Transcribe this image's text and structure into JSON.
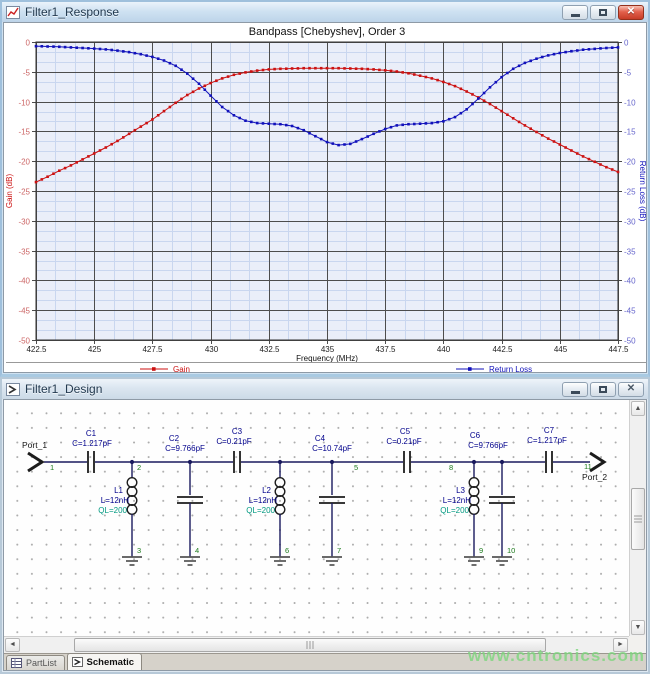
{
  "window_response": {
    "title": "Filter1_Response"
  },
  "window_design": {
    "title": "Filter1_Design",
    "tabs": [
      {
        "label": "PartList",
        "active": false
      },
      {
        "label": "Schematic",
        "active": true
      }
    ],
    "schematic": {
      "ports": [
        {
          "name": "Port_1"
        },
        {
          "name": "Port_2"
        }
      ],
      "parts": [
        {
          "ref": "C1",
          "value": "C=1.217pF"
        },
        {
          "ref": "C2",
          "value": "C=9.766pF"
        },
        {
          "ref": "C3",
          "value": "C=0.21pF"
        },
        {
          "ref": "C4",
          "value": "C=10.74pF"
        },
        {
          "ref": "C5",
          "value": "C=0.21pF"
        },
        {
          "ref": "C6",
          "value": "C=9.766pF"
        },
        {
          "ref": "C7",
          "value": "C=1.217pF"
        },
        {
          "ref": "L1",
          "value": "L=12nH",
          "ql": "QL=200"
        },
        {
          "ref": "L2",
          "value": "L=12nH",
          "ql": "QL=200"
        },
        {
          "ref": "L3",
          "value": "L=12nH",
          "ql": "QL=200"
        }
      ],
      "node_numbers": [
        "1",
        "2",
        "3",
        "4",
        "5",
        "6",
        "7",
        "8",
        "9",
        "10",
        "11"
      ]
    }
  },
  "chart_data": {
    "type": "line",
    "title": "Bandpass [Chebyshev], Order 3",
    "xlabel": "Frequency (MHz)",
    "ylabel_left": "Gain (dB)",
    "ylabel_right": "Return Loss (dB)",
    "xlim": [
      422.5,
      447.5
    ],
    "ylim": [
      -50,
      0
    ],
    "x_tick_labels": [
      "422.5",
      "425",
      "427.5",
      "430",
      "432.5",
      "435",
      "437.5",
      "440",
      "442.5",
      "445",
      "447.5"
    ],
    "y_tick_labels": [
      "0",
      "-5",
      "-10",
      "-15",
      "-20",
      "-25",
      "-30",
      "-35",
      "-40",
      "-45",
      "-50"
    ],
    "grid": "major+minor",
    "legend_position": "bottom",
    "colors": {
      "gain": "#cc1111",
      "return_loss": "#1111bb",
      "plot_bg": "#eaeef9",
      "minor_grid": "#c9d6ef",
      "major_grid": "#4d4d4d"
    },
    "x0": 422.5,
    "dx": 0.5,
    "series": [
      {
        "name": "Gain",
        "axis": "left",
        "color": "#cc1111",
        "values": [
          -23.5,
          -22.6,
          -21.6,
          -20.7,
          -19.7,
          -18.7,
          -17.7,
          -16.6,
          -15.4,
          -14.2,
          -13.0,
          -11.6,
          -10.2,
          -8.9,
          -7.8,
          -6.9,
          -6.1,
          -5.5,
          -5.1,
          -4.8,
          -4.6,
          -4.5,
          -4.45,
          -4.4,
          -4.4,
          -4.4,
          -4.4,
          -4.45,
          -4.5,
          -4.6,
          -4.75,
          -4.95,
          -5.25,
          -5.65,
          -6.1,
          -6.7,
          -7.4,
          -8.3,
          -9.3,
          -10.4,
          -11.6,
          -12.8,
          -14.0,
          -15.1,
          -16.2,
          -17.2,
          -18.2,
          -19.2,
          -20.1,
          -21.0,
          -21.8
        ]
      },
      {
        "name": "Return Loss",
        "axis": "right",
        "color": "#1111bb",
        "values": [
          -0.7,
          -0.75,
          -0.8,
          -0.9,
          -1.0,
          -1.1,
          -1.25,
          -1.45,
          -1.7,
          -2.05,
          -2.5,
          -3.1,
          -4.0,
          -5.3,
          -7.0,
          -9.0,
          -10.9,
          -12.3,
          -13.2,
          -13.6,
          -13.7,
          -13.8,
          -14.1,
          -14.8,
          -15.8,
          -16.8,
          -17.3,
          -17.1,
          -16.3,
          -15.4,
          -14.6,
          -14.0,
          -13.8,
          -13.7,
          -13.6,
          -13.3,
          -12.6,
          -11.3,
          -9.5,
          -7.6,
          -5.9,
          -4.5,
          -3.5,
          -2.8,
          -2.25,
          -1.85,
          -1.55,
          -1.3,
          -1.15,
          -1.0,
          -0.9
        ]
      }
    ]
  },
  "watermark": "www.cntronics.com"
}
